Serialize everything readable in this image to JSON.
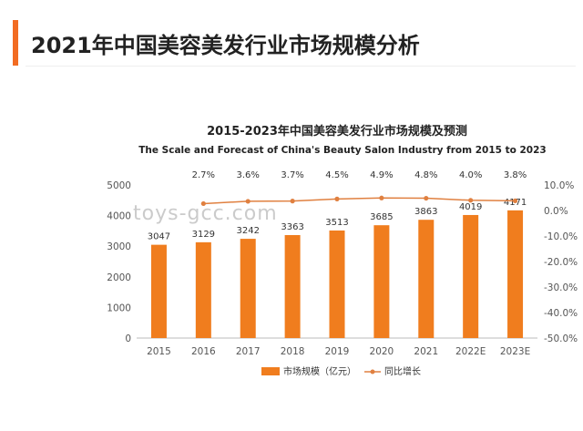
{
  "header": {
    "title": "2021年中国美容美发行业市场规模分析"
  },
  "watermark": "toys-gcc.com",
  "colors": {
    "accent": "#f26c22",
    "bar": "#f07d1e",
    "line": "#e08040",
    "text": "#333333",
    "axis": "#555555"
  },
  "chart_data": {
    "type": "bar",
    "title": "2015-2023年中国美容美发行业市场规模及预测",
    "subtitle": "The Scale and Forecast of China's Beauty Salon Industry from 2015 to 2023",
    "categories": [
      "2015",
      "2016",
      "2017",
      "2018",
      "2019",
      "2020",
      "2021",
      "2022E",
      "2023E"
    ],
    "series": [
      {
        "name": "市场规模（亿元）",
        "type": "bar",
        "axis": "left",
        "values": [
          3047,
          3129,
          3242,
          3363,
          3513,
          3685,
          3863,
          4019,
          4171
        ],
        "labels": [
          "3047",
          "3129",
          "3242",
          "3363",
          "3513",
          "3685",
          "3863",
          "4019",
          "4171"
        ]
      },
      {
        "name": "同比增长",
        "type": "line",
        "axis": "right",
        "values": [
          null,
          2.7,
          3.6,
          3.7,
          4.5,
          4.9,
          4.8,
          4.0,
          3.8
        ],
        "labels": [
          "",
          "2.7%",
          "3.6%",
          "3.7%",
          "4.5%",
          "4.9%",
          "4.8%",
          "4.0%",
          "3.8%"
        ]
      }
    ],
    "ylim_left": [
      0,
      5000
    ],
    "yticks_left": [
      "0",
      "1000",
      "2000",
      "3000",
      "4000",
      "5000"
    ],
    "ylim_right": [
      -50,
      10
    ],
    "yticks_right": [
      "-50.0%",
      "-40.0%",
      "-30.0%",
      "-20.0%",
      "-10.0%",
      "0.0%",
      "10.0%"
    ],
    "grid": false,
    "legend_position": "bottom"
  }
}
